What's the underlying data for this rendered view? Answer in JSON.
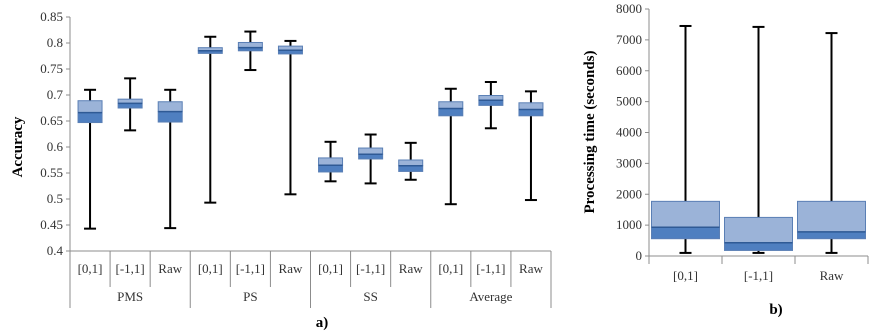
{
  "colors": {
    "box_upper": "#9bb3d8",
    "box_lower": "#4f7fc0",
    "box_stroke": "#5a7fb5",
    "whisker": "#000000",
    "axis": "#8c8c8c"
  },
  "chart_data": [
    {
      "type": "boxplot",
      "panel_label": "a)",
      "ylabel": "Accuracy",
      "ylim": [
        0.4,
        0.85
      ],
      "yticks": [
        "0.4",
        "0.45",
        "0.5",
        "0.55",
        "0.6",
        "0.65",
        "0.7",
        "0.75",
        "0.8",
        "0.85"
      ],
      "groups": [
        "PMS",
        "PS",
        "SS",
        "Average"
      ],
      "categories": [
        "[0,1]",
        "[-1,1]",
        "Raw",
        "[0,1]",
        "[-1,1]",
        "Raw",
        "[0,1]",
        "[-1,1]",
        "Raw",
        "[0,1]",
        "[-1,1]",
        "Raw"
      ],
      "boxes": [
        {
          "group": "PMS",
          "category": "[0,1]",
          "min": 0.443,
          "q1": 0.647,
          "median": 0.666,
          "q3": 0.689,
          "max": 0.71
        },
        {
          "group": "PMS",
          "category": "[-1,1]",
          "min": 0.632,
          "q1": 0.675,
          "median": 0.684,
          "q3": 0.692,
          "max": 0.732
        },
        {
          "group": "PMS",
          "category": "Raw",
          "min": 0.444,
          "q1": 0.648,
          "median": 0.668,
          "q3": 0.687,
          "max": 0.71
        },
        {
          "group": "PS",
          "category": "[0,1]",
          "min": 0.493,
          "q1": 0.78,
          "median": 0.785,
          "q3": 0.791,
          "max": 0.812
        },
        {
          "group": "PS",
          "category": "[-1,1]",
          "min": 0.748,
          "q1": 0.785,
          "median": 0.791,
          "q3": 0.801,
          "max": 0.822
        },
        {
          "group": "PS",
          "category": "Raw",
          "min": 0.509,
          "q1": 0.779,
          "median": 0.786,
          "q3": 0.794,
          "max": 0.804
        },
        {
          "group": "SS",
          "category": "[0,1]",
          "min": 0.534,
          "q1": 0.552,
          "median": 0.565,
          "q3": 0.579,
          "max": 0.61
        },
        {
          "group": "SS",
          "category": "[-1,1]",
          "min": 0.53,
          "q1": 0.577,
          "median": 0.586,
          "q3": 0.598,
          "max": 0.624
        },
        {
          "group": "SS",
          "category": "Raw",
          "min": 0.537,
          "q1": 0.553,
          "median": 0.564,
          "q3": 0.575,
          "max": 0.608
        },
        {
          "group": "Average",
          "category": "[0,1]",
          "min": 0.49,
          "q1": 0.66,
          "median": 0.674,
          "q3": 0.687,
          "max": 0.712
        },
        {
          "group": "Average",
          "category": "[-1,1]",
          "min": 0.636,
          "q1": 0.68,
          "median": 0.69,
          "q3": 0.699,
          "max": 0.725
        },
        {
          "group": "Average",
          "category": "Raw",
          "min": 0.498,
          "q1": 0.66,
          "median": 0.672,
          "q3": 0.685,
          "max": 0.707
        }
      ]
    },
    {
      "type": "boxplot",
      "panel_label": "b)",
      "ylabel": "Processing time (seconds)",
      "ylim": [
        0,
        8000
      ],
      "yticks": [
        "0",
        "1000",
        "2000",
        "3000",
        "4000",
        "5000",
        "6000",
        "7000",
        "8000"
      ],
      "categories": [
        "[0,1]",
        "[-1,1]",
        "Raw"
      ],
      "boxes": [
        {
          "category": "[0,1]",
          "min": 100,
          "q1": 560,
          "median": 930,
          "q3": 1770,
          "max": 7450
        },
        {
          "category": "[-1,1]",
          "min": 100,
          "q1": 180,
          "median": 430,
          "q3": 1250,
          "max": 7420
        },
        {
          "category": "Raw",
          "min": 100,
          "q1": 560,
          "median": 780,
          "q3": 1770,
          "max": 7220
        }
      ]
    }
  ]
}
